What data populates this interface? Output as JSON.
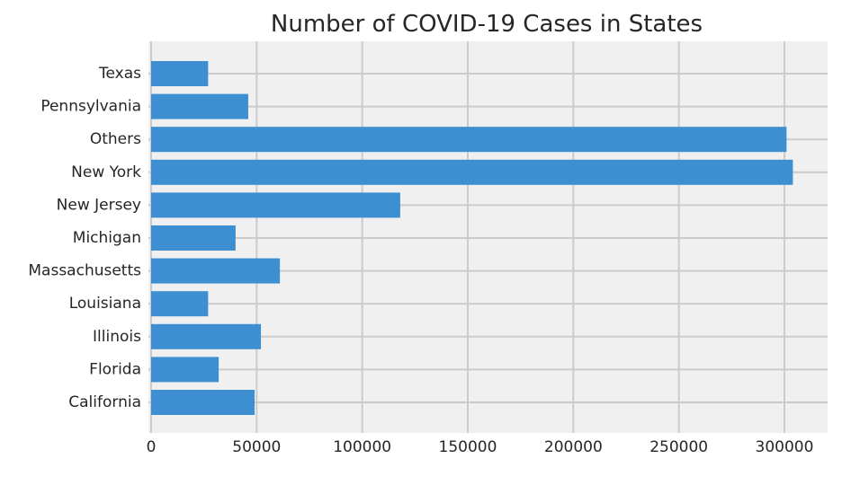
{
  "chart_data": {
    "type": "bar",
    "orientation": "horizontal",
    "title": "Number of COVID-19 Cases in States",
    "xlabel": "",
    "ylabel": "",
    "categories": [
      "California",
      "Florida",
      "Illinois",
      "Louisiana",
      "Massachusetts",
      "Michigan",
      "New Jersey",
      "New York",
      "Others",
      "Pennsylvania",
      "Texas"
    ],
    "values": [
      49000,
      32000,
      52000,
      27000,
      61000,
      40000,
      118000,
      304000,
      301000,
      46000,
      27000
    ],
    "xlim": [
      0,
      320000
    ],
    "xticks": [
      0,
      50000,
      100000,
      150000,
      200000,
      250000,
      300000
    ],
    "xtick_labels": [
      "0",
      "50000",
      "100000",
      "150000",
      "200000",
      "250000",
      "300000"
    ],
    "grid": true,
    "colors": {
      "bar": "#3d8fd1",
      "plot_background": "#f0f0f0",
      "grid": "#cbcbcb",
      "text": "#262626"
    }
  }
}
